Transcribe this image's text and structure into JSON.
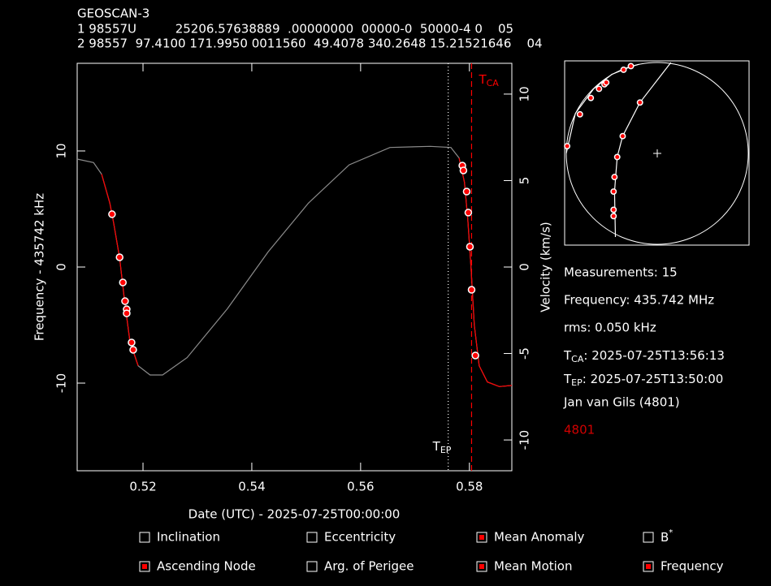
{
  "header": {
    "title": "GEOSCAN-3",
    "line1": "1 98557U          25206.57638889  .00000000  00000-0  50000-4 0    05",
    "line2": "2 98557  97.4100 171.9950 0011560  49.4078 340.2648 15.21521646    04"
  },
  "chart_data": [
    {
      "type": "line",
      "xlabel": "Date (UTC) - 2025-07-25T00:00:00",
      "ylabel": "Frequency - 435742 kHz",
      "y2label": "Velocity (km/s)",
      "xlim": [
        0.5079,
        0.5878
      ],
      "ylim": [
        -17.55,
        17.55
      ],
      "y2lim": [
        -11.78,
        11.78
      ],
      "xticks": [
        0.52,
        0.54,
        0.56,
        0.58
      ],
      "yticks": [
        -10,
        0,
        10
      ],
      "y2ticks": [
        -10,
        -5,
        0,
        5,
        10
      ],
      "series": [
        {
          "type": "line",
          "color": "#8c8c8c",
          "x": [
            0.5079,
            0.5109,
            0.5124,
            0.5139,
            0.5146,
            0.5157,
            0.5166,
            0.5176,
            0.5191,
            0.5213,
            0.5236,
            0.5281,
            0.5355,
            0.543,
            0.5504,
            0.5579,
            0.5654,
            0.5728,
            0.5766,
            0.5781,
            0.5791,
            0.5797,
            0.5803,
            0.5809,
            0.5818,
            0.5833,
            0.5855,
            0.5878
          ],
          "values": [
            9.3,
            9.0,
            8.0,
            5.5,
            3.8,
            0.8,
            -2.9,
            -6.4,
            -8.5,
            -9.3,
            -9.3,
            -7.8,
            -3.6,
            1.3,
            5.5,
            8.8,
            10.3,
            10.4,
            10.3,
            9.4,
            7.3,
            4.1,
            -0.1,
            -5.0,
            -8.5,
            -9.9,
            -10.3,
            -10.2
          ]
        },
        {
          "type": "line",
          "color": "#ff0000",
          "x": [
            0.5124,
            0.5139,
            0.5146,
            0.5157,
            0.5166,
            0.5176,
            0.5191,
            null,
            0.5781,
            0.5791,
            0.5797,
            0.5803,
            0.5809,
            0.5818,
            0.5833,
            0.5855,
            0.5878
          ],
          "values": [
            8.0,
            5.5,
            3.8,
            0.8,
            -2.9,
            -6.4,
            -8.5,
            null,
            9.4,
            7.3,
            4.1,
            -0.1,
            -5.0,
            -8.5,
            -9.9,
            -10.3,
            -10.2
          ]
        },
        {
          "type": "scatter",
          "color": "#ff0000",
          "x": [
            0.5143,
            0.5157,
            0.5163,
            0.5167,
            0.517,
            0.517,
            0.5179,
            0.5182,
            0.5787,
            0.5789,
            0.5795,
            0.5798,
            0.5801,
            0.5804,
            0.5811
          ],
          "values": [
            4.55,
            0.84,
            -1.33,
            -2.94,
            -3.64,
            -3.99,
            -6.5,
            -7.13,
            8.74,
            8.32,
            6.5,
            4.69,
            1.75,
            -1.96,
            -7.62
          ]
        }
      ],
      "markers": [
        {
          "x": 0.5761,
          "style": "dotted",
          "color": "#ffffff",
          "label": {
            "base": "T",
            "sub": "EP"
          }
        },
        {
          "x": 0.5804,
          "style": "dashed",
          "color": "#ff0000",
          "label": {
            "base": "T",
            "sub": "CA"
          }
        }
      ]
    },
    {
      "type": "sky",
      "xlim": [
        -1,
        1
      ],
      "ylim": [
        -1,
        1
      ],
      "series": [
        {
          "type": "line",
          "color": "#ffffff",
          "x": [
            -1.0,
            -0.9,
            -0.7,
            -0.5,
            -0.3,
            -0.2
          ],
          "values": [
            0.0,
            0.44,
            0.71,
            0.87,
            0.95,
            0.98
          ]
        },
        {
          "type": "line",
          "color": "#ffffff",
          "x": [
            -0.46,
            -0.47,
            -0.44,
            -0.38,
            -0.19,
            0.15
          ],
          "values": [
            -0.92,
            -0.42,
            -0.04,
            0.19,
            0.56,
            1.0
          ]
        },
        {
          "type": "scatter",
          "color": "#ff0000",
          "x": [
            -0.99,
            -0.85,
            -0.73,
            -0.64,
            -0.58,
            -0.56,
            -0.37,
            -0.29,
            -0.19,
            -0.38,
            -0.44,
            -0.47,
            -0.48,
            -0.48,
            -0.48
          ],
          "values": [
            0.08,
            0.43,
            0.61,
            0.71,
            0.76,
            0.78,
            0.92,
            0.96,
            0.56,
            0.19,
            -0.04,
            -0.26,
            -0.42,
            -0.62,
            -0.69
          ]
        }
      ]
    }
  ],
  "info": {
    "measurements": "Measurements: 15",
    "frequency": "Frequency: 435.742 MHz",
    "rms": "rms: 0.050 kHz",
    "tca": {
      "base": "T",
      "sub": "CA",
      "text": ": 2025-07-25T13:56:13"
    },
    "tep": {
      "base": "T",
      "sub": "EP",
      "text": ": 2025-07-25T13:50:00"
    },
    "observer": "Jan van Gils (4801)",
    "site": "4801"
  },
  "options": [
    {
      "label": "Inclination",
      "checked": false
    },
    {
      "label": "Eccentricity",
      "checked": false
    },
    {
      "label": "Mean Anomaly",
      "checked": true
    },
    {
      "label": {
        "base": "B",
        "sup": "*"
      },
      "checked": false
    },
    {
      "label": "Ascending Node",
      "checked": true
    },
    {
      "label": "Arg. of Perigee",
      "checked": false
    },
    {
      "label": "Mean Motion",
      "checked": true
    },
    {
      "label": "Frequency",
      "checked": true
    }
  ]
}
